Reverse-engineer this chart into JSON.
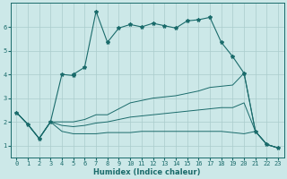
{
  "xlabel": "Humidex (Indice chaleur)",
  "ylabel": "",
  "xlim": [
    -0.5,
    23.5
  ],
  "ylim": [
    0.5,
    7.0
  ],
  "background_color": "#cce8e8",
  "grid_color": "#aacccc",
  "line_color": "#1a6b6b",
  "xticks": [
    0,
    1,
    2,
    3,
    4,
    5,
    6,
    7,
    8,
    9,
    10,
    11,
    12,
    13,
    14,
    15,
    16,
    17,
    18,
    19,
    20,
    21,
    22,
    23
  ],
  "yticks": [
    1,
    2,
    3,
    4,
    5,
    6
  ],
  "line1_x": [
    0,
    1,
    2,
    3,
    4,
    5,
    5,
    6,
    7,
    8,
    9,
    10,
    11,
    12,
    13,
    14,
    15,
    16,
    17,
    18,
    19,
    20,
    21,
    22,
    23
  ],
  "line1_y": [
    2.4,
    1.9,
    1.3,
    2.0,
    4.0,
    3.95,
    4.0,
    4.3,
    6.65,
    5.35,
    5.95,
    6.1,
    6.0,
    6.15,
    6.05,
    5.95,
    6.25,
    6.3,
    6.4,
    5.35,
    4.75,
    4.05,
    1.6,
    1.05,
    0.9
  ],
  "line2_x": [
    0,
    1,
    2,
    3,
    4,
    5,
    6,
    7,
    8,
    9,
    10,
    11,
    12,
    13,
    14,
    15,
    16,
    17,
    18,
    19,
    20,
    21,
    22,
    23
  ],
  "line2_y": [
    2.4,
    1.9,
    1.3,
    2.0,
    2.0,
    2.0,
    2.1,
    2.3,
    2.3,
    2.55,
    2.8,
    2.9,
    3.0,
    3.05,
    3.1,
    3.2,
    3.3,
    3.45,
    3.5,
    3.55,
    4.05,
    1.6,
    1.05,
    0.9
  ],
  "line3_x": [
    0,
    1,
    2,
    3,
    4,
    5,
    6,
    7,
    8,
    9,
    10,
    11,
    12,
    13,
    14,
    15,
    16,
    17,
    18,
    19,
    20,
    21,
    22,
    23
  ],
  "line3_y": [
    2.4,
    1.9,
    1.3,
    2.0,
    1.85,
    1.8,
    1.85,
    1.95,
    2.0,
    2.1,
    2.2,
    2.25,
    2.3,
    2.35,
    2.4,
    2.45,
    2.5,
    2.55,
    2.6,
    2.6,
    2.8,
    1.6,
    1.05,
    0.9
  ],
  "line4_x": [
    0,
    1,
    2,
    3,
    4,
    5,
    6,
    7,
    8,
    9,
    10,
    11,
    12,
    13,
    14,
    15,
    16,
    17,
    18,
    19,
    20,
    21,
    22,
    23
  ],
  "line4_y": [
    2.4,
    1.9,
    1.3,
    2.0,
    1.6,
    1.5,
    1.5,
    1.5,
    1.55,
    1.55,
    1.55,
    1.6,
    1.6,
    1.6,
    1.6,
    1.6,
    1.6,
    1.6,
    1.6,
    1.55,
    1.5,
    1.6,
    1.05,
    0.9
  ]
}
